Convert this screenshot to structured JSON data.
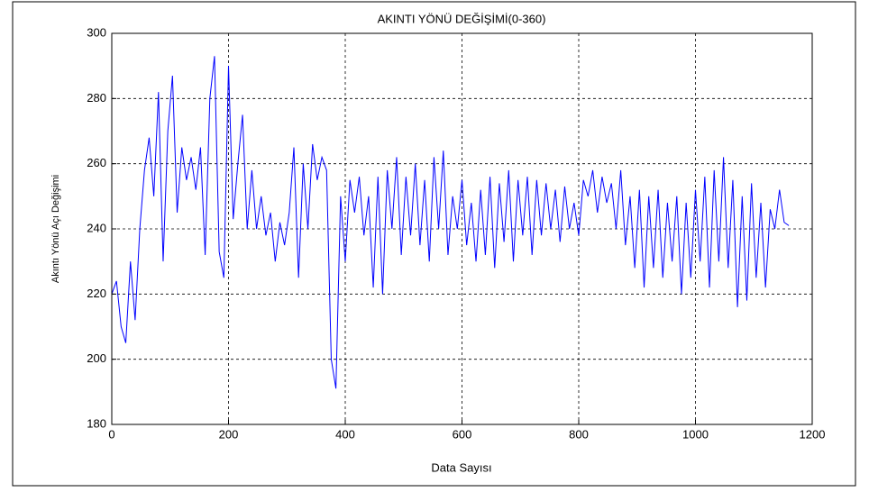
{
  "chart_data": {
    "type": "line",
    "title": "AKINTI YÖNÜ DEĞİŞİMİ(0-360)",
    "x_label": "Data Sayısı",
    "y_label": "Akıntı Yönü Açı Değişimi",
    "xlim": [
      0,
      1200
    ],
    "xticks": [
      0,
      200,
      400,
      600,
      800,
      1000,
      1200
    ],
    "ylim": [
      180,
      300
    ],
    "yticks": [
      180,
      200,
      220,
      240,
      260,
      280,
      300
    ],
    "grid": true,
    "x": [
      0,
      8,
      16,
      24,
      32,
      40,
      48,
      56,
      64,
      72,
      80,
      88,
      96,
      104,
      112,
      120,
      128,
      136,
      144,
      152,
      160,
      168,
      176,
      184,
      192,
      200,
      208,
      216,
      224,
      232,
      240,
      248,
      256,
      264,
      272,
      280,
      288,
      296,
      304,
      312,
      320,
      328,
      336,
      344,
      352,
      360,
      368,
      376,
      384,
      392,
      400,
      408,
      416,
      424,
      432,
      440,
      448,
      456,
      464,
      472,
      480,
      488,
      496,
      504,
      512,
      520,
      528,
      536,
      544,
      552,
      560,
      568,
      576,
      584,
      592,
      600,
      608,
      616,
      624,
      632,
      640,
      648,
      656,
      664,
      672,
      680,
      688,
      696,
      704,
      712,
      720,
      728,
      736,
      744,
      752,
      760,
      768,
      776,
      784,
      792,
      800,
      808,
      816,
      824,
      832,
      840,
      848,
      856,
      864,
      872,
      880,
      888,
      896,
      904,
      912,
      920,
      928,
      936,
      944,
      952,
      960,
      968,
      976,
      984,
      992,
      1000,
      1008,
      1016,
      1024,
      1032,
      1040,
      1048,
      1056,
      1064,
      1072,
      1080,
      1088,
      1096,
      1104,
      1112,
      1120,
      1128,
      1136,
      1144,
      1152,
      1160
    ],
    "series": [
      {
        "color": "#0000ff",
        "values": [
          220,
          224,
          210,
          205,
          230,
          212,
          240,
          258,
          268,
          250,
          282,
          230,
          270,
          287,
          245,
          265,
          255,
          262,
          252,
          265,
          232,
          280,
          293,
          233,
          225,
          290,
          243,
          260,
          275,
          240,
          258,
          240,
          250,
          238,
          245,
          230,
          242,
          235,
          245,
          265,
          225,
          260,
          240,
          266,
          255,
          262,
          258,
          200,
          191,
          250,
          230,
          255,
          245,
          256,
          238,
          250,
          222,
          256,
          220,
          258,
          240,
          262,
          232,
          256,
          238,
          260,
          235,
          255,
          230,
          262,
          240,
          264,
          232,
          250,
          240,
          255,
          235,
          248,
          230,
          252,
          232,
          256,
          228,
          254,
          236,
          258,
          230,
          255,
          238,
          256,
          232,
          255,
          238,
          254,
          240,
          252,
          236,
          253,
          240,
          248,
          238,
          255,
          250,
          258,
          245,
          256,
          248,
          254,
          240,
          258,
          235,
          250,
          228,
          252,
          222,
          250,
          228,
          252,
          225,
          248,
          230,
          250,
          220,
          248,
          225,
          252,
          230,
          256,
          222,
          258,
          230,
          262,
          228,
          255,
          216,
          250,
          218,
          254,
          225,
          248,
          222,
          246,
          240,
          252,
          242,
          241
        ]
      }
    ]
  }
}
